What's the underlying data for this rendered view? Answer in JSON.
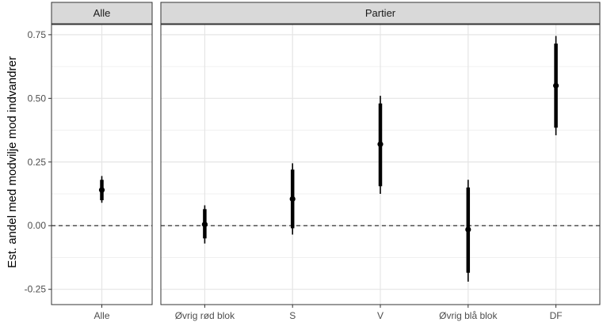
{
  "chart_data": {
    "type": "pointrange",
    "ylabel": "Est. andel med modvilje mod indvandrer",
    "xlabel": "",
    "ylim": [
      -0.31,
      0.79
    ],
    "y_ticks": [
      -0.25,
      0,
      0.25,
      0.5,
      0.75
    ],
    "y_tick_labels": [
      "-0.25",
      "0.00",
      "0.25",
      "0.50",
      "0.75"
    ],
    "reference_line": 0,
    "grid": true,
    "facets": [
      {
        "title": "Alle",
        "categories": [
          "Alle"
        ],
        "estimate": [
          0.14
        ],
        "inner": [
          [
            0.1,
            0.18
          ]
        ],
        "outer": [
          [
            0.09,
            0.195
          ]
        ]
      },
      {
        "title": "Partier",
        "categories": [
          "Øvrig rød blok",
          "S",
          "V",
          "Øvrig blå blok",
          "DF"
        ],
        "estimate": [
          0.005,
          0.105,
          0.32,
          -0.015,
          0.55
        ],
        "inner": [
          [
            -0.05,
            0.065
          ],
          [
            -0.01,
            0.22
          ],
          [
            0.155,
            0.48
          ],
          [
            -0.185,
            0.15
          ],
          [
            0.385,
            0.715
          ]
        ],
        "outer": [
          [
            -0.07,
            0.08
          ],
          [
            -0.035,
            0.245
          ],
          [
            0.125,
            0.51
          ],
          [
            -0.22,
            0.18
          ],
          [
            0.355,
            0.745
          ]
        ]
      }
    ]
  }
}
